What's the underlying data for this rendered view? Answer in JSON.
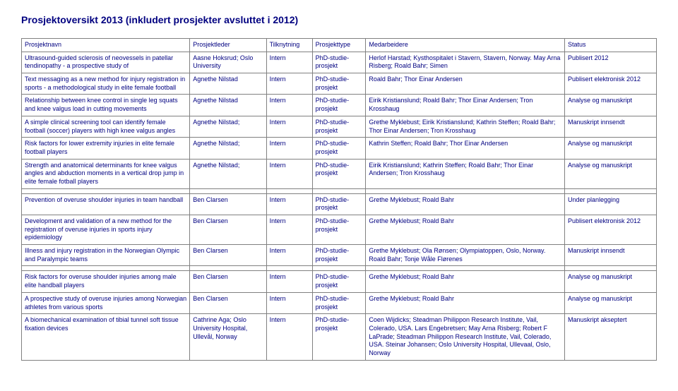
{
  "title": "Prosjektoversikt 2013 (inkludert prosjekter avsluttet i 2012)",
  "headers": {
    "c1": "Prosjektnavn",
    "c2": "Prosjektleder",
    "c3": "Tilknytning",
    "c4": "Prosjekttype",
    "c5": "Medarbeidere",
    "c6": "Status"
  },
  "group1": [
    {
      "c1": "Ultrasound-guided sclerosis of neovessels in patellar tendinopathy - a prospective study of",
      "c2": "Aasne Hoksrud; Oslo University",
      "c3": "Intern",
      "c4": "PhD-studie-prosjekt",
      "c5": "Herlof Harstad; Kysthospitalet i Stavern, Stavern, Norway. May Arna Risberg; Roald Bahr; Simen",
      "c6": "Publisert 2012"
    },
    {
      "c1": "Text messaging as a new method for injury registration in sports - a methodological study in elite female football",
      "c2": "Agnethe Nilstad",
      "c3": "Intern",
      "c4": "PhD-studie-prosjekt",
      "c5": "Roald Bahr; Thor Einar Andersen",
      "c6": "Publisert elektronisk 2012"
    },
    {
      "c1": "Relationship between knee control in single leg squats and knee valgus load in cutting movements",
      "c2": "Agnethe Nilstad",
      "c3": "Intern",
      "c4": "PhD-studie-prosjekt",
      "c5": "Eirik Kristianslund; Roald Bahr; Thor Einar Andersen; Tron Krosshaug",
      "c6": "Analyse og manuskript"
    },
    {
      "c1": "A simple clinical screening tool can identify female football (soccer) players with high knee valgus angles",
      "c2": "Agnethe Nilstad;",
      "c3": "Intern",
      "c4": "PhD-studie-prosjekt",
      "c5": "Grethe Myklebust; Eirik Kristianslund; Kathrin Steffen; Roald Bahr; Thor Einar Andersen; Tron Krosshaug",
      "c6": "Manuskript innsendt"
    },
    {
      "c1": "Risk factors for lower extremity injuries in elite female football players",
      "c2": "Agnethe Nilstad;",
      "c3": "Intern",
      "c4": "PhD-studie-prosjekt",
      "c5": "Kathrin Steffen; Roald Bahr; Thor Einar Andersen",
      "c6": "Analyse og manuskript"
    },
    {
      "c1": "Strength and anatomical determinants for knee valgus angles and abduction moments in a vertical drop jump in elite female fotball players",
      "c2": "Agnethe Nilstad;",
      "c3": "Intern",
      "c4": "PhD-studie-prosjekt",
      "c5": "Eirik Kristianslund; Kathrin Steffen; Roald Bahr; Thor Einar Andersen; Tron Krosshaug",
      "c6": "Analyse og manuskript"
    }
  ],
  "group2": [
    {
      "c1": "Prevention of overuse shoulder injuries in team handball",
      "c2": "Ben Clarsen",
      "c3": "Intern",
      "c4": "PhD-studie-prosjekt",
      "c5": "Grethe Myklebust; Roald Bahr",
      "c6": "Under planlegging"
    },
    {
      "c1": "Development and validation of a new method for the registration of overuse injuries in sports injury epidemiology",
      "c2": "Ben Clarsen",
      "c3": "Intern",
      "c4": "PhD-studie-prosjekt",
      "c5": "Grethe Myklebust; Roald Bahr",
      "c6": "Publisert elektronisk 2012"
    },
    {
      "c1": "Illness and injury registration in the Norwegian Olympic and Paralympic teams",
      "c2": "Ben Clarsen",
      "c3": "Intern",
      "c4": "PhD-studie-prosjekt",
      "c5": "Grethe Myklebust; Ola Rønsen; Olympiatoppen, Oslo, Norway. Roald Bahr; Tonje Wåle Flørenes",
      "c6": "Manuskript innsendt"
    }
  ],
  "group3": [
    {
      "c1": "Risk factors for overuse shoulder injuries among male elite handball players",
      "c2": "Ben Clarsen",
      "c3": "Intern",
      "c4": "PhD-studie-prosjekt",
      "c5": "Grethe Myklebust; Roald Bahr",
      "c6": "Analyse og manuskript"
    },
    {
      "c1": "A prospective study of overuse injuries among Norwegian athletes from various sports",
      "c2": "Ben Clarsen",
      "c3": "Intern",
      "c4": "PhD-studie-prosjekt",
      "c5": "Grethe Myklebust; Roald Bahr",
      "c6": "Analyse og manuskript"
    },
    {
      "c1": "A biomechanical examination of tibial tunnel soft tissue fixation devices",
      "c2": "Cathrine Aga; Oslo University Hospital, Ullevål, Norway",
      "c3": "Intern",
      "c4": "PhD-studie-prosjekt",
      "c5": "Coen Wijdicks; Steadman Philippon Research Institute, Vail, Colerado, USA. Lars Engebretsen; May Arna Risberg; Robert F LaPrade; Steadman Philippon Research Institute, Vail, Colerado, USA. Steinar Johansen; Oslo University Hospital, Ullevaal, Oslo, Norway",
      "c6": "Manuskript akseptert"
    }
  ]
}
